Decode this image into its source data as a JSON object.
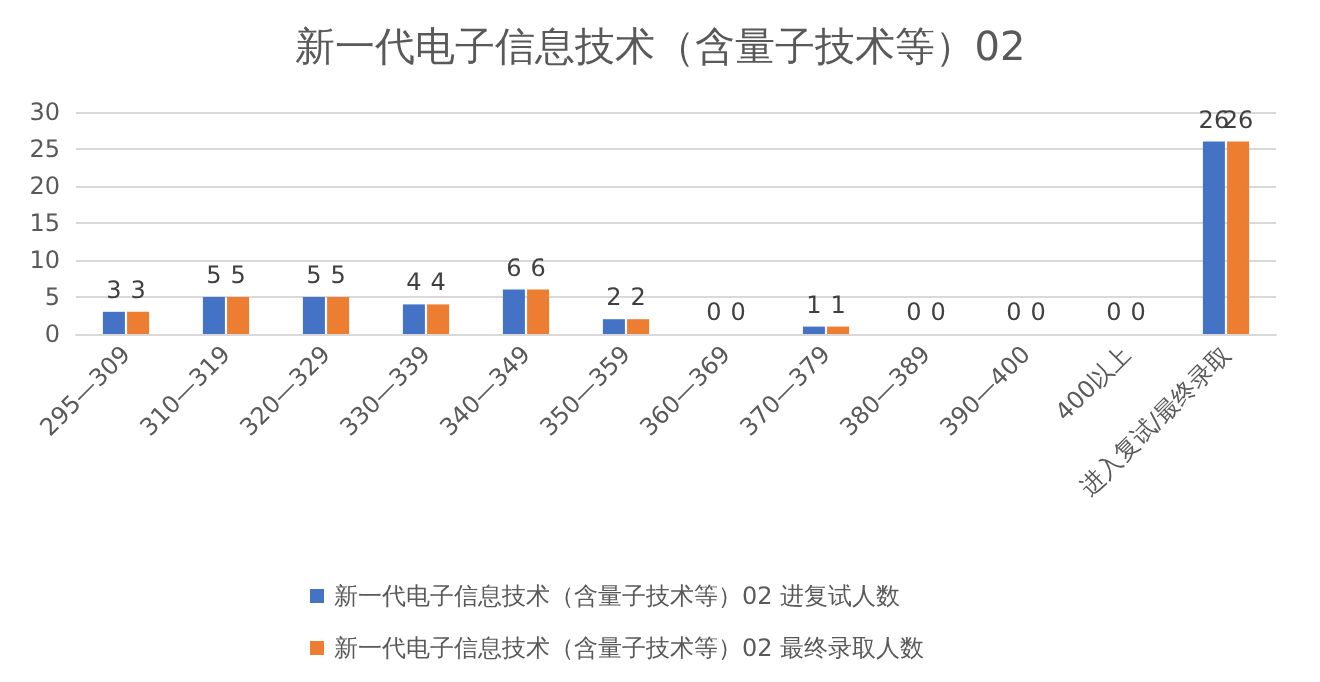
{
  "chart_data": {
    "type": "bar",
    "title": "新一代电子信息技术（含量子技术等）02",
    "categories": [
      "295—309",
      "310—319",
      "320—329",
      "330—339",
      "340—349",
      "350—359",
      "360—369",
      "370—379",
      "380—389",
      "390—400",
      "400以上",
      "进入复试/最终录取"
    ],
    "series": [
      {
        "name": "新一代电子信息技术（含量子技术等）02 进复试人数",
        "color": "#4472c4",
        "values": [
          3,
          5,
          5,
          4,
          6,
          2,
          0,
          1,
          0,
          0,
          0,
          26
        ]
      },
      {
        "name": "新一代电子信息技术（含量子技术等）02 最终录取人数",
        "color": "#ed7d31",
        "values": [
          3,
          5,
          5,
          4,
          6,
          2,
          0,
          1,
          0,
          0,
          0,
          26
        ]
      }
    ],
    "ylim": [
      0,
      30
    ],
    "yticks": [
      0,
      5,
      10,
      15,
      20,
      25,
      30
    ],
    "grid": "y",
    "legend": "bottom",
    "data_labels": true
  }
}
